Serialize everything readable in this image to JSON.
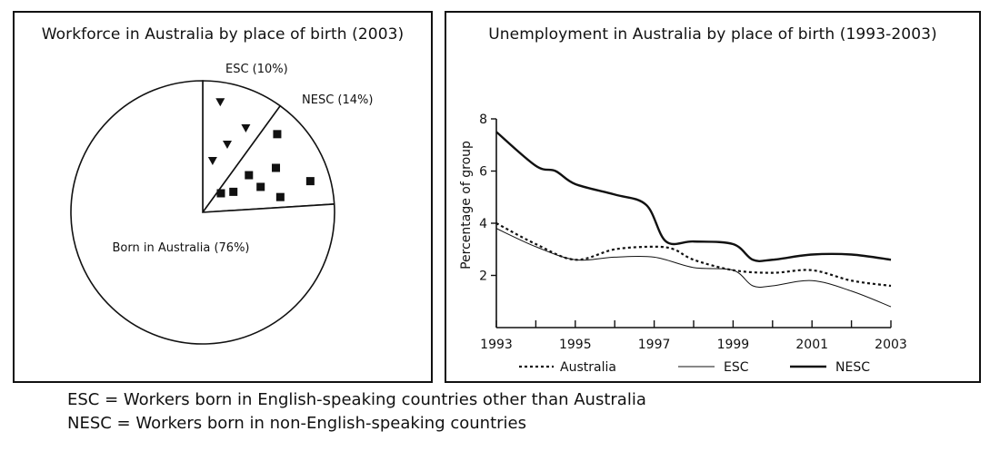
{
  "chart_data": [
    {
      "type": "pie",
      "title": "Workforce in Australia by place of birth (2003)",
      "slices": [
        {
          "label": "ESC (10%)",
          "value": 10,
          "marker": "triangle",
          "fill": "#ffffff"
        },
        {
          "label": "NESC (14%)",
          "value": 14,
          "marker": "square",
          "fill": "#ffffff"
        },
        {
          "label": "Born in Australia (76%)",
          "value": 76,
          "marker": "none",
          "fill": "#ffffff"
        }
      ]
    },
    {
      "type": "line",
      "title": "Unemployment in Australia by place of birth (1993-2003)",
      "xlabel": "",
      "ylabel": "Percentage of group",
      "xlim": [
        1993,
        2003
      ],
      "ylim": [
        0,
        8
      ],
      "xticks": [
        1993,
        1994,
        1995,
        1996,
        1997,
        1998,
        1999,
        2000,
        2001,
        2002,
        2003
      ],
      "xtick_labels": [
        "1993",
        "1995",
        "1997",
        "1999",
        "2001",
        "2003"
      ],
      "yticks": [
        2,
        4,
        6,
        8
      ],
      "ytick_labels": [
        "2",
        "4",
        "6",
        "8"
      ],
      "legend_position": "bottom",
      "series": [
        {
          "name": "Australia",
          "style": "dotted",
          "x": [
            1993,
            1994,
            1995,
            1996,
            1997,
            1997.5,
            1998,
            1999,
            2000,
            2001,
            2002,
            2003
          ],
          "y": [
            4.0,
            3.2,
            2.6,
            3.0,
            3.1,
            3.0,
            2.6,
            2.2,
            2.1,
            2.2,
            1.8,
            1.6
          ]
        },
        {
          "name": "ESC",
          "style": "thin",
          "x": [
            1993,
            1994,
            1995,
            1996,
            1997,
            1998,
            1999,
            1999.5,
            2000,
            2001,
            2002,
            2003
          ],
          "y": [
            3.8,
            3.1,
            2.6,
            2.7,
            2.7,
            2.3,
            2.2,
            1.6,
            1.6,
            1.8,
            1.4,
            0.8
          ]
        },
        {
          "name": "NESC",
          "style": "thick",
          "x": [
            1993,
            1994,
            1994.5,
            1995,
            1996,
            1996.8,
            1997.3,
            1998,
            1999,
            1999.5,
            2000,
            2001,
            2002,
            2003
          ],
          "y": [
            7.5,
            6.2,
            6.0,
            5.5,
            5.1,
            4.7,
            3.3,
            3.3,
            3.2,
            2.6,
            2.6,
            2.8,
            2.8,
            2.6
          ]
        }
      ]
    }
  ],
  "footnotes": [
    "ESC = Workers born in English-speaking countries other than Australia",
    "NESC = Workers born in non-English-speaking countries"
  ]
}
